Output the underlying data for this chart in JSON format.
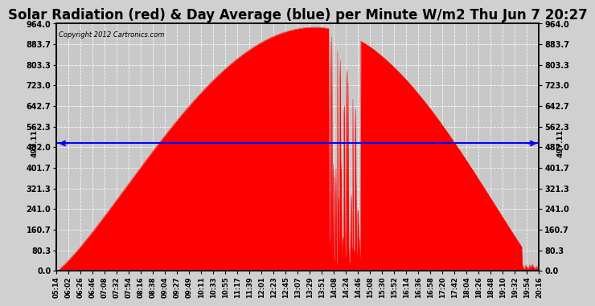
{
  "title": "Solar Radiation (red) & Day Average (blue) per Minute W/m2 Thu Jun 7 20:27",
  "copyright": "Copyright 2012 Cartronics.com",
  "avg_value": 497.11,
  "y_max": 964.0,
  "y_min": 0.0,
  "y_ticks": [
    0.0,
    80.3,
    160.7,
    241.0,
    321.3,
    401.7,
    482.0,
    562.3,
    642.7,
    723.0,
    803.3,
    883.7,
    964.0
  ],
  "x_labels": [
    "05:14",
    "06:02",
    "06:26",
    "06:46",
    "07:08",
    "07:32",
    "07:54",
    "08:16",
    "08:38",
    "09:04",
    "09:27",
    "09:49",
    "10:11",
    "10:33",
    "10:55",
    "11:17",
    "11:39",
    "12:01",
    "12:23",
    "12:45",
    "13:07",
    "13:29",
    "13:51",
    "14:08",
    "14:24",
    "14:46",
    "15:08",
    "15:30",
    "15:52",
    "16:14",
    "16:36",
    "16:58",
    "17:20",
    "17:42",
    "18:04",
    "18:26",
    "18:48",
    "19:10",
    "19:32",
    "19:54",
    "20:16"
  ],
  "outer_bg_color": "#d0d0d0",
  "plot_bg_color": "#c8c8c8",
  "fill_color": "#ff0000",
  "line_color": "#0000ff",
  "title_font_size": 12,
  "avg_label": "497.11",
  "n_points": 916
}
